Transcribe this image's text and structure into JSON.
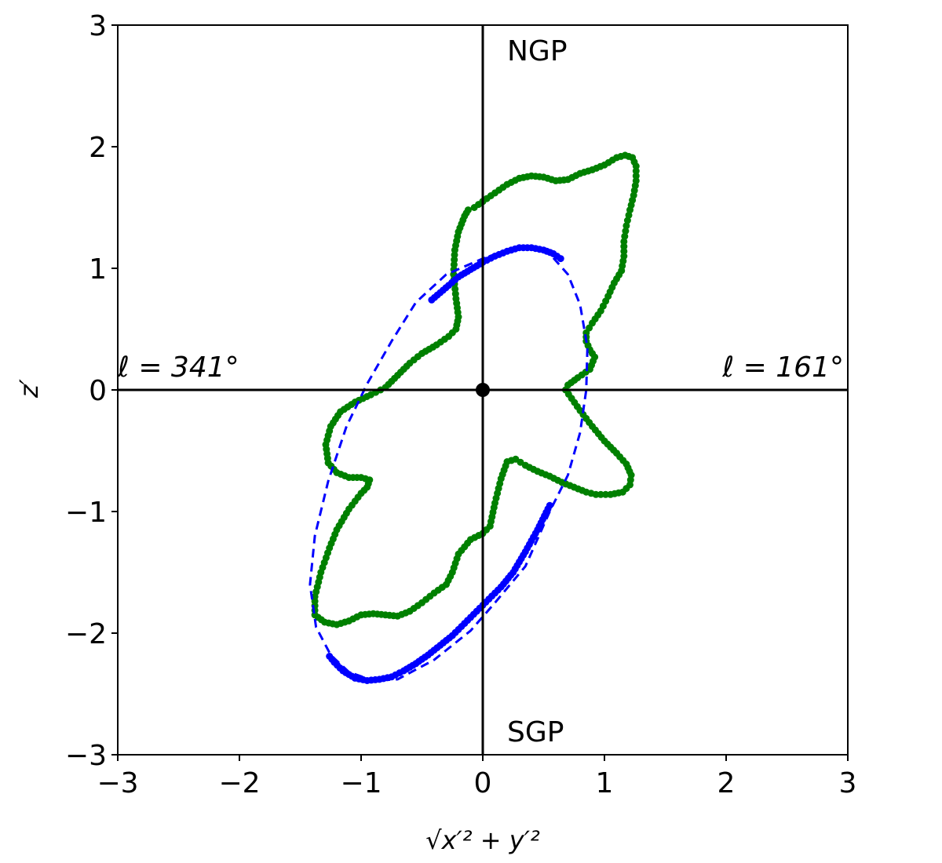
{
  "chart_data": {
    "type": "scatter",
    "title": "",
    "xlabel": "√x′² + y′²",
    "ylabel": "z′",
    "xlim": [
      -3,
      3
    ],
    "ylim": [
      -3,
      3
    ],
    "xticks": [
      "−3",
      "−2",
      "−1",
      "0",
      "1",
      "2",
      "3"
    ],
    "yticks": [
      "−3",
      "−2",
      "−1",
      "0",
      "1",
      "2",
      "3"
    ],
    "grid": false,
    "annotations": {
      "top": "NGP",
      "bottom": "SGP",
      "left": "ℓ = 341°",
      "right": "ℓ = 161°"
    },
    "colors": {
      "green": "#008000",
      "blue": "#0000ff",
      "axis": "#000000"
    },
    "origin_marker": [
      0,
      0
    ],
    "series": [
      {
        "style": "closed-dots",
        "color": "#008000",
        "points": [
          [
            0.0,
            1.55
          ],
          [
            0.1,
            1.62
          ],
          [
            0.2,
            1.69
          ],
          [
            0.3,
            1.74
          ],
          [
            0.4,
            1.76
          ],
          [
            0.5,
            1.75
          ],
          [
            0.6,
            1.72
          ],
          [
            0.7,
            1.73
          ],
          [
            0.8,
            1.78
          ],
          [
            0.9,
            1.81
          ],
          [
            1.0,
            1.85
          ],
          [
            1.1,
            1.91
          ],
          [
            1.17,
            1.93
          ],
          [
            1.23,
            1.91
          ],
          [
            1.26,
            1.84
          ],
          [
            1.26,
            1.72
          ],
          [
            1.24,
            1.6
          ],
          [
            1.21,
            1.48
          ],
          [
            1.18,
            1.35
          ],
          [
            1.16,
            1.22
          ],
          [
            1.16,
            1.1
          ],
          [
            1.14,
            0.98
          ],
          [
            1.08,
            0.88
          ],
          [
            1.03,
            0.77
          ],
          [
            0.97,
            0.65
          ],
          [
            0.9,
            0.55
          ],
          [
            0.85,
            0.47
          ],
          [
            0.85,
            0.4
          ],
          [
            0.88,
            0.33
          ],
          [
            0.92,
            0.27
          ],
          [
            0.88,
            0.17
          ],
          [
            0.78,
            0.1
          ],
          [
            0.7,
            0.04
          ],
          [
            0.68,
            0.0
          ],
          [
            0.73,
            -0.07
          ],
          [
            0.8,
            -0.17
          ],
          [
            0.9,
            -0.3
          ],
          [
            1.0,
            -0.42
          ],
          [
            1.1,
            -0.52
          ],
          [
            1.18,
            -0.61
          ],
          [
            1.22,
            -0.7
          ],
          [
            1.21,
            -0.78
          ],
          [
            1.15,
            -0.84
          ],
          [
            1.05,
            -0.86
          ],
          [
            0.93,
            -0.86
          ],
          [
            0.85,
            -0.84
          ],
          [
            0.75,
            -0.8
          ],
          [
            0.65,
            -0.76
          ],
          [
            0.55,
            -0.71
          ],
          [
            0.45,
            -0.67
          ],
          [
            0.35,
            -0.62
          ],
          [
            0.27,
            -0.57
          ],
          [
            0.2,
            -0.59
          ],
          [
            0.15,
            -0.73
          ],
          [
            0.1,
            -0.93
          ],
          [
            0.06,
            -1.12
          ],
          [
            0.0,
            -1.18
          ],
          [
            -0.1,
            -1.23
          ],
          [
            -0.2,
            -1.35
          ],
          [
            -0.25,
            -1.5
          ],
          [
            -0.3,
            -1.6
          ],
          [
            -0.4,
            -1.67
          ],
          [
            -0.5,
            -1.75
          ],
          [
            -0.6,
            -1.82
          ],
          [
            -0.7,
            -1.86
          ],
          [
            -0.8,
            -1.85
          ],
          [
            -0.9,
            -1.84
          ],
          [
            -1.0,
            -1.85
          ],
          [
            -1.1,
            -1.9
          ],
          [
            -1.2,
            -1.93
          ],
          [
            -1.3,
            -1.91
          ],
          [
            -1.38,
            -1.85
          ],
          [
            -1.38,
            -1.7
          ],
          [
            -1.33,
            -1.5
          ],
          [
            -1.26,
            -1.3
          ],
          [
            -1.2,
            -1.15
          ],
          [
            -1.1,
            -0.98
          ],
          [
            -1.0,
            -0.85
          ],
          [
            -0.95,
            -0.8
          ],
          [
            -0.93,
            -0.74
          ],
          [
            -1.0,
            -0.72
          ],
          [
            -1.1,
            -0.72
          ],
          [
            -1.2,
            -0.68
          ],
          [
            -1.27,
            -0.6
          ],
          [
            -1.29,
            -0.45
          ],
          [
            -1.25,
            -0.3
          ],
          [
            -1.17,
            -0.18
          ],
          [
            -1.05,
            -0.1
          ],
          [
            -0.92,
            -0.04
          ],
          [
            -0.8,
            0.02
          ],
          [
            -0.7,
            0.12
          ],
          [
            -0.6,
            0.22
          ],
          [
            -0.5,
            0.3
          ],
          [
            -0.38,
            0.37
          ],
          [
            -0.28,
            0.44
          ],
          [
            -0.22,
            0.5
          ],
          [
            -0.2,
            0.6
          ],
          [
            -0.22,
            0.75
          ],
          [
            -0.24,
            0.95
          ],
          [
            -0.23,
            1.15
          ],
          [
            -0.2,
            1.3
          ],
          [
            -0.15,
            1.43
          ],
          [
            -0.12,
            1.48
          ],
          [
            -0.07,
            1.5
          ],
          [
            0.0,
            1.55
          ]
        ]
      },
      {
        "style": "dashed-ellipse",
        "color": "#0000ff",
        "points": [
          [
            0.37,
            1.17
          ],
          [
            0.55,
            1.12
          ],
          [
            0.7,
            0.95
          ],
          [
            0.8,
            0.7
          ],
          [
            0.86,
            0.35
          ],
          [
            0.85,
            0.0
          ],
          [
            0.8,
            -0.35
          ],
          [
            0.7,
            -0.7
          ],
          [
            0.55,
            -1.0
          ],
          [
            0.35,
            -1.45
          ],
          [
            0.1,
            -1.75
          ],
          [
            -0.1,
            -1.98
          ],
          [
            -0.4,
            -2.22
          ],
          [
            -0.7,
            -2.38
          ],
          [
            -0.9,
            -2.39
          ],
          [
            -1.1,
            -2.32
          ],
          [
            -1.25,
            -2.18
          ],
          [
            -1.37,
            -1.95
          ],
          [
            -1.42,
            -1.6
          ],
          [
            -1.38,
            -1.2
          ],
          [
            -1.27,
            -0.75
          ],
          [
            -1.12,
            -0.3
          ],
          [
            -0.95,
            0.05
          ],
          [
            -0.75,
            0.4
          ],
          [
            -0.55,
            0.72
          ],
          [
            -0.3,
            0.95
          ],
          [
            0.0,
            1.08
          ],
          [
            0.2,
            1.15
          ],
          [
            0.37,
            1.17
          ]
        ]
      },
      {
        "style": "dots",
        "color": "#0000ff",
        "points": [
          [
            -0.42,
            0.74
          ],
          [
            -0.35,
            0.8
          ],
          [
            -0.28,
            0.86
          ],
          [
            -0.2,
            0.93
          ],
          [
            -0.1,
            0.99
          ],
          [
            0.0,
            1.05
          ],
          [
            0.1,
            1.1
          ],
          [
            0.2,
            1.14
          ],
          [
            0.3,
            1.17
          ],
          [
            0.4,
            1.17
          ],
          [
            0.5,
            1.15
          ],
          [
            0.58,
            1.12
          ],
          [
            0.64,
            1.08
          ]
        ]
      },
      {
        "style": "dots",
        "color": "#0000ff",
        "points": [
          [
            0.55,
            -0.95
          ],
          [
            0.45,
            -1.15
          ],
          [
            0.35,
            -1.33
          ],
          [
            0.25,
            -1.5
          ],
          [
            0.15,
            -1.62
          ],
          [
            0.05,
            -1.72
          ],
          [
            -0.05,
            -1.82
          ],
          [
            -0.15,
            -1.92
          ],
          [
            -0.25,
            -2.02
          ],
          [
            -0.35,
            -2.1
          ],
          [
            -0.45,
            -2.18
          ],
          [
            -0.55,
            -2.25
          ],
          [
            -0.65,
            -2.31
          ],
          [
            -0.75,
            -2.36
          ],
          [
            -0.85,
            -2.38
          ],
          [
            -0.95,
            -2.39
          ],
          [
            -1.05,
            -2.37
          ],
          [
            -1.15,
            -2.31
          ],
          [
            -1.22,
            -2.24
          ],
          [
            -1.26,
            -2.19
          ]
        ]
      }
    ]
  }
}
